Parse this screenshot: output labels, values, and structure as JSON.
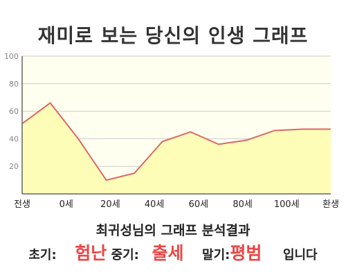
{
  "title": "재미로 보는 당신의 인생 그래프",
  "result": {
    "heading": "최귀성님의 그래프 분석결과",
    "early_label": "초기:",
    "early_value": "험난",
    "mid_label": "중기:",
    "mid_value": "출세",
    "late_label": "말기:",
    "late_value": "평범",
    "suffix": "입니다"
  },
  "chart_data": {
    "type": "area",
    "title": "",
    "xlabel": "",
    "ylabel": "",
    "x_tick_labels": [
      "전생",
      "0세",
      "20세",
      "40세",
      "60세",
      "80세",
      "100세",
      "환생"
    ],
    "y_ticks": [
      20,
      40,
      60,
      80,
      100
    ],
    "ylim": [
      0,
      100
    ],
    "grid": true,
    "series": [
      {
        "values": [
          51,
          66,
          40,
          10,
          15,
          38,
          45,
          36,
          39,
          46,
          47,
          47
        ]
      }
    ],
    "colors": {
      "line": "#dd6666",
      "fill": "#fdfdb8",
      "plot_bg": "#fffff0",
      "grid": "#cccccc"
    }
  }
}
